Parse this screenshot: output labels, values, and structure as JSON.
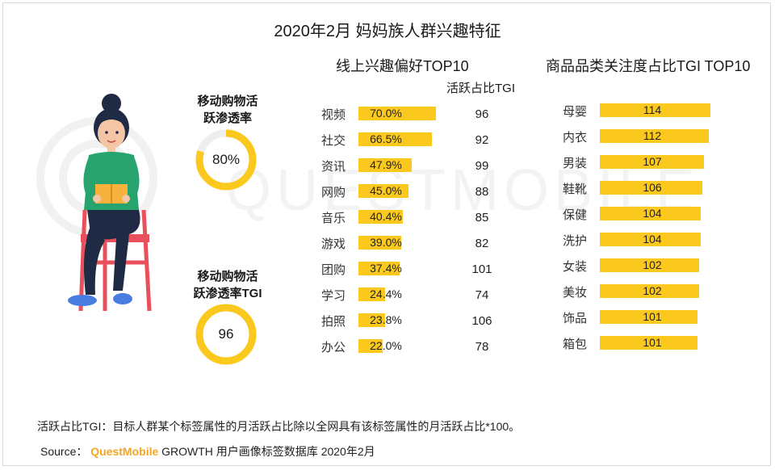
{
  "title": "2020年2月 妈妈族人群兴趣特征",
  "colors": {
    "bar": "#fbc91e",
    "ring": "#fbc91e",
    "ring_track": "#eeeeee"
  },
  "left": {
    "ring1": {
      "label_line1": "移动购物活",
      "label_line2": "跃渗透率",
      "value": "80%",
      "fraction": 0.8
    },
    "ring2": {
      "label_line1": "移动购物活",
      "label_line2": "跃渗透率TGI",
      "value": "96",
      "fraction": 1.0
    }
  },
  "chart_data": [
    {
      "type": "bar",
      "title": "线上兴趣偏好TOP10",
      "tgi_header": "活跃占比TGI",
      "categories": [
        "视频",
        "社交",
        "资讯",
        "网购",
        "音乐",
        "游戏",
        "团购",
        "学习",
        "拍照",
        "办公"
      ],
      "values": [
        70.0,
        66.5,
        47.9,
        45.0,
        40.4,
        39.0,
        37.4,
        24.4,
        23.8,
        22.0
      ],
      "labels": [
        "70.0%",
        "66.5%",
        "47.9%",
        "45.0%",
        "40.4%",
        "39.0%",
        "37.4%",
        "24.4%",
        "23.8%",
        "22.0%"
      ],
      "tgi": [
        "96",
        "92",
        "99",
        "88",
        "85",
        "82",
        "101",
        "74",
        "106",
        "78"
      ]
    },
    {
      "type": "bar",
      "title": "商品品类关注度占比TGI TOP10",
      "categories": [
        "母婴",
        "内衣",
        "男装",
        "鞋靴",
        "保健",
        "洗护",
        "女装",
        "美妆",
        "饰品",
        "箱包"
      ],
      "values": [
        114,
        112,
        107,
        106,
        104,
        104,
        102,
        102,
        101,
        101
      ],
      "labels": [
        "114",
        "112",
        "107",
        "106",
        "104",
        "104",
        "102",
        "102",
        "101",
        "101"
      ]
    }
  ],
  "footnote": "活跃占比TGI：目标人群某个标签属性的月活跃占比除以全网具有该标签属性的月活跃占比*100。",
  "source": {
    "prefix": "Source：",
    "brand": "QuestMobile",
    "suffix": "GROWTH 用户画像标签数据库 2020年2月"
  },
  "watermark_text": "QUESTMOBILE"
}
